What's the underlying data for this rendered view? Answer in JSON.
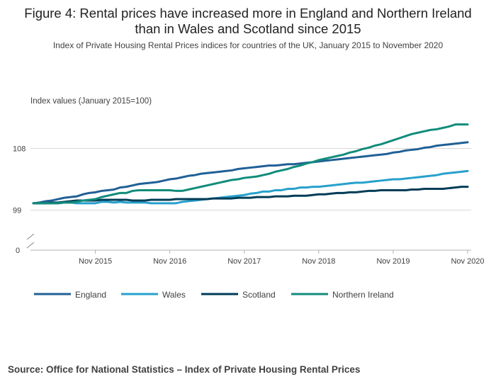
{
  "header": {
    "title": "Figure 4: Rental prices have increased more in England and Northern Ireland than in Wales and Scotland since 2015",
    "subtitle": "Index of Private Housing Rental Prices indices for countries of the UK, January 2015 to November 2020"
  },
  "footer": {
    "source": "Source: Office for National Statistics – Index of Private Housing Rental Prices"
  },
  "colors": {
    "England": "#206095",
    "Wales": "#27a0cc",
    "Scotland": "#003c57",
    "Northern Ireland": "#118c7b",
    "grid": "#d9d9d9",
    "axis": "#b3b3b3"
  },
  "chart_data": {
    "type": "line",
    "title": "Figure 4: Rental prices have increased more in England and Northern Ireland than in Wales and Scotland since 2015",
    "ylabel": "Index values (January 2015=100)",
    "xlabel": "",
    "y_ticks": [
      "99",
      "108"
    ],
    "y_zero_label": "0",
    "ylim": [
      98,
      111
    ],
    "y_axis_break": true,
    "x_start": "January 2015",
    "x_end": "November 2020",
    "x_ticks": [
      {
        "month_index": 10,
        "label": "Nov 2015"
      },
      {
        "month_index": 22,
        "label": "Nov 2016"
      },
      {
        "month_index": 34,
        "label": "Nov 2017"
      },
      {
        "month_index": 46,
        "label": "Nov 2018"
      },
      {
        "month_index": 58,
        "label": "Nov 2019"
      },
      {
        "month_index": 70,
        "label": "Nov 2020"
      }
    ],
    "legend_position": "bottom",
    "series": [
      {
        "name": "England",
        "values": [
          100.0,
          100.1,
          100.3,
          100.4,
          100.6,
          100.8,
          100.9,
          101.0,
          101.3,
          101.5,
          101.6,
          101.8,
          101.9,
          102.0,
          102.3,
          102.4,
          102.6,
          102.8,
          102.9,
          103.0,
          103.1,
          103.3,
          103.5,
          103.6,
          103.8,
          104.0,
          104.1,
          104.3,
          104.4,
          104.5,
          104.6,
          104.7,
          104.8,
          105.0,
          105.1,
          105.2,
          105.3,
          105.4,
          105.5,
          105.5,
          105.6,
          105.7,
          105.7,
          105.8,
          105.9,
          106.0,
          106.1,
          106.2,
          106.3,
          106.4,
          106.5,
          106.6,
          106.7,
          106.8,
          106.9,
          107.0,
          107.1,
          107.2,
          107.4,
          107.5,
          107.7,
          107.8,
          107.9,
          108.1,
          108.2,
          108.4,
          108.5,
          108.6,
          108.7,
          108.8,
          108.9
        ]
      },
      {
        "name": "Wales",
        "values": [
          100.0,
          100.0,
          100.0,
          100.0,
          100.0,
          100.1,
          100.1,
          100.0,
          100.0,
          100.0,
          100.0,
          100.2,
          100.2,
          100.1,
          100.2,
          100.1,
          100.1,
          100.1,
          100.1,
          100.0,
          100.0,
          100.0,
          100.0,
          100.0,
          100.2,
          100.3,
          100.4,
          100.5,
          100.6,
          100.7,
          100.8,
          100.9,
          101.0,
          101.1,
          101.2,
          101.4,
          101.5,
          101.7,
          101.7,
          101.9,
          101.9,
          102.1,
          102.1,
          102.3,
          102.3,
          102.4,
          102.4,
          102.5,
          102.6,
          102.7,
          102.8,
          102.9,
          103.0,
          103.0,
          103.1,
          103.2,
          103.3,
          103.4,
          103.5,
          103.5,
          103.6,
          103.7,
          103.8,
          103.9,
          104.0,
          104.1,
          104.3,
          104.4,
          104.5,
          104.6,
          104.7
        ]
      },
      {
        "name": "Scotland",
        "values": [
          100.0,
          100.0,
          100.0,
          100.1,
          100.1,
          100.2,
          100.3,
          100.4,
          100.4,
          100.4,
          100.4,
          100.5,
          100.5,
          100.5,
          100.5,
          100.5,
          100.4,
          100.4,
          100.4,
          100.5,
          100.5,
          100.5,
          100.5,
          100.6,
          100.6,
          100.6,
          100.6,
          100.6,
          100.6,
          100.7,
          100.7,
          100.7,
          100.7,
          100.8,
          100.8,
          100.8,
          100.9,
          100.9,
          100.9,
          101.0,
          101.0,
          101.0,
          101.1,
          101.1,
          101.1,
          101.2,
          101.3,
          101.3,
          101.4,
          101.5,
          101.5,
          101.6,
          101.6,
          101.7,
          101.8,
          101.8,
          101.9,
          101.9,
          101.9,
          101.9,
          101.9,
          102.0,
          102.0,
          102.1,
          102.1,
          102.1,
          102.1,
          102.2,
          102.3,
          102.4,
          102.4
        ]
      },
      {
        "name": "Northern Ireland",
        "values": [
          100.0,
          100.0,
          100.0,
          100.0,
          100.0,
          100.1,
          100.1,
          100.2,
          100.4,
          100.5,
          100.6,
          100.9,
          101.1,
          101.3,
          101.5,
          101.5,
          101.8,
          101.9,
          101.9,
          101.9,
          101.9,
          101.9,
          101.9,
          101.8,
          101.8,
          102.0,
          102.2,
          102.4,
          102.6,
          102.8,
          103.0,
          103.2,
          103.4,
          103.5,
          103.7,
          103.8,
          103.9,
          104.1,
          104.3,
          104.6,
          104.8,
          105.0,
          105.3,
          105.5,
          105.8,
          106.0,
          106.3,
          106.5,
          106.7,
          106.9,
          107.1,
          107.4,
          107.6,
          107.9,
          108.1,
          108.4,
          108.6,
          108.9,
          109.2,
          109.5,
          109.8,
          110.1,
          110.3,
          110.5,
          110.7,
          110.8,
          111.0,
          111.2,
          111.5,
          111.5,
          111.5
        ]
      }
    ]
  }
}
